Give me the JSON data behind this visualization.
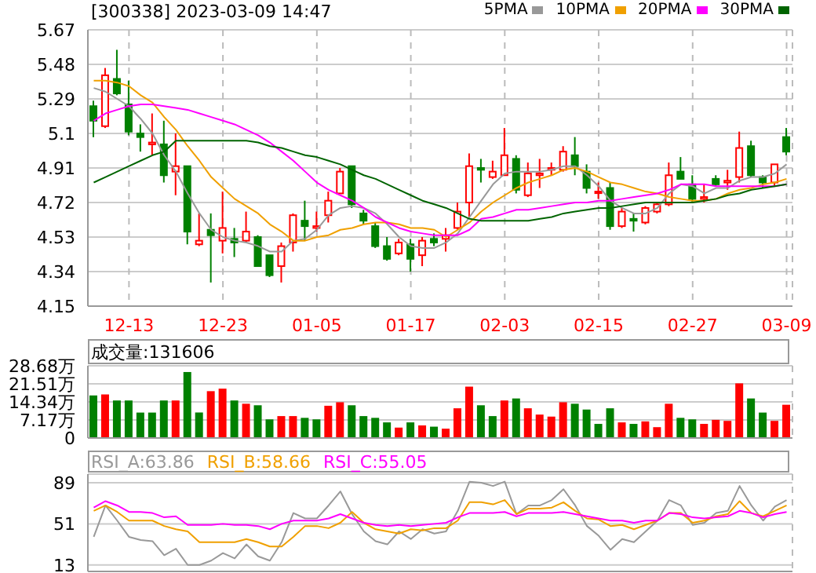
{
  "chart_data": [
    {
      "type": "candlestick",
      "title": "[300338] 2023-03-09 14:47",
      "categories": [
        null,
        null,
        null,
        "12-13",
        null,
        null,
        null,
        null,
        null,
        null,
        null,
        "12-23",
        null,
        null,
        null,
        null,
        null,
        null,
        null,
        "01-05",
        null,
        null,
        null,
        null,
        null,
        null,
        null,
        "01-17",
        null,
        null,
        null,
        null,
        null,
        null,
        null,
        "02-03",
        null,
        null,
        null,
        null,
        null,
        null,
        null,
        "02-15",
        null,
        null,
        null,
        null,
        null,
        null,
        null,
        "02-27",
        null,
        null,
        null,
        null,
        null,
        null,
        null,
        "03-09"
      ],
      "ohlc": [
        [
          5.25,
          5.28,
          5.08,
          5.17
        ],
        [
          5.14,
          5.46,
          5.13,
          5.42
        ],
        [
          5.4,
          5.56,
          5.31,
          5.32
        ],
        [
          5.26,
          5.39,
          5.09,
          5.11
        ],
        [
          5.1,
          5.15,
          5.0,
          5.08
        ],
        [
          5.04,
          5.21,
          4.98,
          5.05
        ],
        [
          5.04,
          5.17,
          4.83,
          4.87
        ],
        [
          4.89,
          5.1,
          4.76,
          4.92
        ],
        [
          4.92,
          4.92,
          4.49,
          4.56
        ],
        [
          4.49,
          4.66,
          4.48,
          4.51
        ],
        [
          4.57,
          4.66,
          4.28,
          4.54
        ],
        [
          4.51,
          4.78,
          4.44,
          4.58
        ],
        [
          4.52,
          4.58,
          4.42,
          4.5
        ],
        [
          4.51,
          4.67,
          4.5,
          4.56
        ],
        [
          4.53,
          4.54,
          4.37,
          4.37
        ],
        [
          4.43,
          4.43,
          4.31,
          4.32
        ],
        [
          4.37,
          4.5,
          4.28,
          4.48
        ],
        [
          4.5,
          4.66,
          4.45,
          4.65
        ],
        [
          4.62,
          4.73,
          4.51,
          4.59
        ],
        [
          4.58,
          4.67,
          4.56,
          4.59
        ],
        [
          4.65,
          4.78,
          4.61,
          4.73
        ],
        [
          4.77,
          4.91,
          4.77,
          4.89
        ],
        [
          4.92,
          4.92,
          4.69,
          4.71
        ],
        [
          4.66,
          4.68,
          4.6,
          4.62
        ],
        [
          4.59,
          4.61,
          4.47,
          4.48
        ],
        [
          4.48,
          4.53,
          4.4,
          4.41
        ],
        [
          4.44,
          4.52,
          4.43,
          4.5
        ],
        [
          4.49,
          4.52,
          4.34,
          4.41
        ],
        [
          4.43,
          4.53,
          4.37,
          4.51
        ],
        [
          4.52,
          4.55,
          4.48,
          4.5
        ],
        [
          4.52,
          4.58,
          4.45,
          4.54
        ],
        [
          4.58,
          4.72,
          4.57,
          4.67
        ],
        [
          4.72,
          4.99,
          4.64,
          4.92
        ],
        [
          4.91,
          4.96,
          4.83,
          4.9
        ],
        [
          4.86,
          4.95,
          4.85,
          4.89
        ],
        [
          4.87,
          5.13,
          4.87,
          4.98
        ],
        [
          4.96,
          4.98,
          4.77,
          4.79
        ],
        [
          4.76,
          4.94,
          4.75,
          4.88
        ],
        [
          4.87,
          4.96,
          4.8,
          4.88
        ],
        [
          4.9,
          4.94,
          4.87,
          4.91
        ],
        [
          4.9,
          5.03,
          4.89,
          5.0
        ],
        [
          4.98,
          5.08,
          4.87,
          4.92
        ],
        [
          4.89,
          4.93,
          4.77,
          4.8
        ],
        [
          4.78,
          4.83,
          4.74,
          4.78
        ],
        [
          4.8,
          4.83,
          4.57,
          4.59
        ],
        [
          4.59,
          4.69,
          4.58,
          4.67
        ],
        [
          4.63,
          4.66,
          4.56,
          4.62
        ],
        [
          4.61,
          4.7,
          4.6,
          4.69
        ],
        [
          4.67,
          4.72,
          4.66,
          4.71
        ],
        [
          4.71,
          4.94,
          4.7,
          4.87
        ],
        [
          4.89,
          4.97,
          4.85,
          4.85
        ],
        [
          4.82,
          4.87,
          4.72,
          4.74
        ],
        [
          4.74,
          4.82,
          4.72,
          4.75
        ],
        [
          4.85,
          4.87,
          4.81,
          4.82
        ],
        [
          4.83,
          4.9,
          4.79,
          4.84
        ],
        [
          4.86,
          5.11,
          4.83,
          5.02
        ],
        [
          5.03,
          5.06,
          4.86,
          4.87
        ],
        [
          4.86,
          4.87,
          4.8,
          4.83
        ],
        [
          4.83,
          4.93,
          4.81,
          4.93
        ],
        [
          5.08,
          5.13,
          4.98,
          5.0
        ]
      ],
      "colors": [
        "#008000",
        "#ff0000",
        "#008000",
        "#008000",
        "#008000",
        "#ff0000",
        "#008000",
        "#ff0000",
        "#008000",
        "#ff0000",
        "#008000",
        "#ff0000",
        "#008000",
        "#ff0000",
        "#008000",
        "#008000",
        "#ff0000",
        "#ff0000",
        "#008000",
        "#ff0000",
        "#ff0000",
        "#ff0000",
        "#008000",
        "#008000",
        "#008000",
        "#008000",
        "#ff0000",
        "#008000",
        "#ff0000",
        "#008000",
        "#ff0000",
        "#ff0000",
        "#ff0000",
        "#008000",
        "#ff0000",
        "#ff0000",
        "#008000",
        "#ff0000",
        "#ff0000",
        "#ff0000",
        "#ff0000",
        "#008000",
        "#008000",
        "#ff0000",
        "#008000",
        "#ff0000",
        "#008000",
        "#ff0000",
        "#ff0000",
        "#ff0000",
        "#008000",
        "#008000",
        "#ff0000",
        "#008000",
        "#ff0000",
        "#ff0000",
        "#008000",
        "#008000",
        "#ff0000",
        "#008000"
      ],
      "series": [
        {
          "name": "5PMA",
          "type": "line",
          "color": "#999999",
          "values": [
            5.35,
            5.33,
            5.29,
            5.25,
            5.18,
            5.1,
            4.98,
            4.89,
            4.77,
            4.66,
            4.57,
            4.53,
            4.51,
            4.5,
            4.48,
            4.45,
            4.45,
            4.51,
            4.52,
            4.57,
            4.65,
            4.69,
            4.7,
            4.69,
            4.66,
            4.6,
            4.53,
            4.48,
            4.47,
            4.47,
            4.5,
            4.55,
            4.64,
            4.73,
            4.82,
            4.88,
            4.89,
            4.89,
            4.89,
            4.9,
            4.92,
            4.92,
            4.87,
            4.81,
            4.73,
            4.69,
            4.66,
            4.66,
            4.69,
            4.77,
            4.82,
            4.81,
            4.77,
            4.8,
            4.8,
            4.84,
            4.86,
            4.86,
            4.88,
            4.93
          ]
        },
        {
          "name": "10PMA",
          "type": "line",
          "color": "#f0a000",
          "values": [
            5.39,
            5.39,
            5.38,
            5.36,
            5.31,
            5.27,
            5.19,
            5.12,
            5.03,
            4.95,
            4.86,
            4.8,
            4.74,
            4.7,
            4.66,
            4.6,
            4.56,
            4.51,
            4.51,
            4.53,
            4.54,
            4.57,
            4.58,
            4.6,
            4.61,
            4.61,
            4.6,
            4.58,
            4.58,
            4.57,
            4.53,
            4.57,
            4.61,
            4.67,
            4.72,
            4.76,
            4.8,
            4.83,
            4.85,
            4.87,
            4.9,
            4.91,
            4.89,
            4.86,
            4.83,
            4.82,
            4.8,
            4.78,
            4.77,
            4.75,
            4.74,
            4.73,
            4.73,
            4.74,
            4.77,
            4.79,
            4.8,
            4.82,
            4.83,
            4.85
          ]
        },
        {
          "name": "20PMA",
          "type": "line",
          "color": "#ff00ff",
          "values": [
            5.17,
            5.21,
            5.23,
            5.25,
            5.26,
            5.26,
            5.25,
            5.24,
            5.23,
            5.21,
            5.19,
            5.17,
            5.15,
            5.12,
            5.09,
            5.05,
            5.0,
            4.95,
            4.89,
            4.83,
            4.79,
            4.76,
            4.73,
            4.69,
            4.64,
            4.61,
            4.58,
            4.56,
            4.55,
            4.54,
            4.54,
            4.54,
            4.57,
            4.63,
            4.64,
            4.66,
            4.68,
            4.68,
            4.69,
            4.7,
            4.71,
            4.72,
            4.72,
            4.73,
            4.73,
            4.74,
            4.75,
            4.76,
            4.77,
            4.79,
            4.82,
            4.82,
            4.82,
            4.81,
            4.81,
            4.81,
            4.81,
            4.81,
            4.81,
            4.82
          ]
        },
        {
          "name": "30PMA",
          "type": "line",
          "color": "#006400",
          "values": [
            4.83,
            4.86,
            4.89,
            4.92,
            4.95,
            4.98,
            5.0,
            5.06,
            5.06,
            5.06,
            5.06,
            5.06,
            5.06,
            5.06,
            5.05,
            5.03,
            5.02,
            5.0,
            4.98,
            4.97,
            4.95,
            4.93,
            4.9,
            4.87,
            4.85,
            4.82,
            4.79,
            4.76,
            4.73,
            4.71,
            4.69,
            4.66,
            4.63,
            4.62,
            4.62,
            4.62,
            4.62,
            4.62,
            4.63,
            4.64,
            4.66,
            4.67,
            4.68,
            4.69,
            4.69,
            4.7,
            4.71,
            4.72,
            4.72,
            4.72,
            4.72,
            4.72,
            4.73,
            4.74,
            4.76,
            4.77,
            4.79,
            4.8,
            4.81,
            4.82
          ]
        }
      ],
      "ylim": [
        4.15,
        5.67
      ],
      "yticks": [
        4.15,
        4.34,
        4.53,
        4.72,
        4.91,
        5.1,
        5.29,
        5.48,
        5.67
      ],
      "grid": true,
      "legend": "top right"
    },
    {
      "type": "bar",
      "categories": [
        null,
        null,
        null,
        null,
        null,
        null,
        null,
        null,
        null,
        null,
        null,
        null,
        null,
        null,
        null,
        null,
        null,
        null,
        null,
        null,
        null,
        null,
        null,
        null,
        null,
        null,
        null,
        null,
        null,
        null,
        null,
        null,
        null,
        null,
        null,
        null,
        null,
        null,
        null,
        null,
        null,
        null,
        null,
        null,
        null,
        null,
        null,
        null,
        null,
        null,
        null,
        null,
        null,
        null,
        null,
        null,
        null,
        null,
        null,
        null
      ],
      "series": [
        {
          "name": "成交量:131606",
          "values": [
            16.9,
            17.3,
            14.9,
            14.9,
            10.1,
            10.1,
            14.9,
            14.9,
            26.2,
            10.1,
            18.6,
            19.6,
            14.9,
            13.6,
            13.0,
            7.4,
            8.7,
            8.7,
            8.0,
            7.4,
            12.8,
            14.2,
            13.0,
            8.7,
            8.0,
            6.2,
            4.1,
            6.2,
            5.0,
            4.5,
            3.7,
            11.8,
            20.4,
            13.0,
            8.7,
            14.9,
            15.7,
            11.8,
            9.3,
            8.5,
            14.2,
            13.6,
            11.3,
            5.6,
            11.8,
            6.2,
            5.6,
            6.6,
            4.3,
            13.6,
            8.0,
            7.4,
            5.6,
            7.2,
            6.8,
            21.7,
            15.7,
            10.1,
            6.8,
            13.2
          ]
        }
      ],
      "colors": [
        "#008000",
        "#ff0000",
        "#008000",
        "#008000",
        "#008000",
        "#008000",
        "#008000",
        "#ff0000",
        "#008000",
        "#008000",
        "#ff0000",
        "#ff0000",
        "#008000",
        "#ff0000",
        "#008000",
        "#008000",
        "#ff0000",
        "#ff0000",
        "#008000",
        "#008000",
        "#ff0000",
        "#ff0000",
        "#008000",
        "#008000",
        "#008000",
        "#008000",
        "#ff0000",
        "#008000",
        "#ff0000",
        "#008000",
        "#ff0000",
        "#ff0000",
        "#ff0000",
        "#008000",
        "#008000",
        "#ff0000",
        "#008000",
        "#ff0000",
        "#ff0000",
        "#ff0000",
        "#ff0000",
        "#008000",
        "#008000",
        "#008000",
        "#008000",
        "#ff0000",
        "#008000",
        "#ff0000",
        "#ff0000",
        "#ff0000",
        "#008000",
        "#008000",
        "#ff0000",
        "#ff0000",
        "#ff0000",
        "#ff0000",
        "#008000",
        "#008000",
        "#ff0000",
        "#ff0000"
      ],
      "ylim": [
        0,
        28.68
      ],
      "yticks": [
        0,
        {
          "value": 7.17,
          "label": "7.17万"
        },
        {
          "value": 14.34,
          "label": "14.34万"
        },
        {
          "value": 21.51,
          "label": "21.51万"
        },
        {
          "value": 28.68,
          "label": "28.68万"
        }
      ],
      "grid": true,
      "legend": "top left",
      "tick_labels": "y"
    },
    {
      "type": "line",
      "categories": [
        null,
        null,
        null,
        null,
        null,
        null,
        null,
        null,
        null,
        null,
        null,
        null,
        null,
        null,
        null,
        null,
        null,
        null,
        null,
        null,
        null,
        null,
        null,
        null,
        null,
        null,
        null,
        null,
        null,
        null,
        null,
        null,
        null,
        null,
        null,
        null,
        null,
        null,
        null,
        null,
        null,
        null,
        null,
        null,
        null,
        null,
        null,
        null,
        null,
        null,
        null,
        null,
        null,
        null,
        null,
        null,
        null,
        null,
        null,
        null
      ],
      "series": [
        {
          "name": "RSI_A:63.86",
          "color": "#999999",
          "values": [
            39,
            68,
            54,
            39,
            36,
            35,
            22,
            28,
            13,
            13,
            17,
            24,
            19,
            32,
            21,
            17,
            34,
            61,
            56,
            56,
            68,
            81,
            60,
            44,
            35,
            32,
            44,
            37,
            46,
            42,
            44,
            63,
            90,
            89,
            86,
            90,
            60,
            68,
            68,
            73,
            83,
            68,
            49,
            40,
            27,
            37,
            34,
            44,
            54,
            73,
            68,
            50,
            52,
            61,
            63,
            86,
            68,
            54,
            67,
            73
          ]
        },
        {
          "name": "RSI_B:58.66",
          "color": "#f0a000",
          "values": [
            63,
            68,
            62,
            54,
            54,
            54,
            49,
            46,
            44,
            34,
            34,
            34,
            34,
            37,
            34,
            30,
            30,
            39,
            49,
            49,
            47,
            52,
            62,
            52,
            46,
            44,
            42,
            46,
            45,
            47,
            47,
            54,
            71,
            71,
            69,
            73,
            60,
            65,
            65,
            66,
            71,
            63,
            56,
            55,
            49,
            50,
            46,
            50,
            54,
            61,
            61,
            52,
            54,
            58,
            60,
            72,
            61,
            58,
            63,
            68
          ]
        },
        {
          "name": "RSI_C:55.05",
          "color": "#ff00ff",
          "values": [
            66,
            72,
            68,
            62,
            62,
            61,
            57,
            58,
            50,
            50,
            50,
            51,
            50,
            50,
            49,
            46,
            51,
            54,
            54,
            54,
            56,
            60,
            56,
            52,
            50,
            49,
            50,
            49,
            50,
            51,
            52,
            57,
            61,
            61,
            61,
            62,
            58,
            61,
            61,
            61,
            62,
            60,
            58,
            56,
            54,
            54,
            52,
            54,
            54,
            61,
            60,
            57,
            56,
            57,
            58,
            63,
            61,
            57,
            60,
            62
          ]
        }
      ],
      "ylim": [
        7,
        97
      ],
      "yticks": [
        13,
        51,
        89
      ],
      "grid": true,
      "legend": "top left",
      "tick_labels": "y"
    }
  ]
}
